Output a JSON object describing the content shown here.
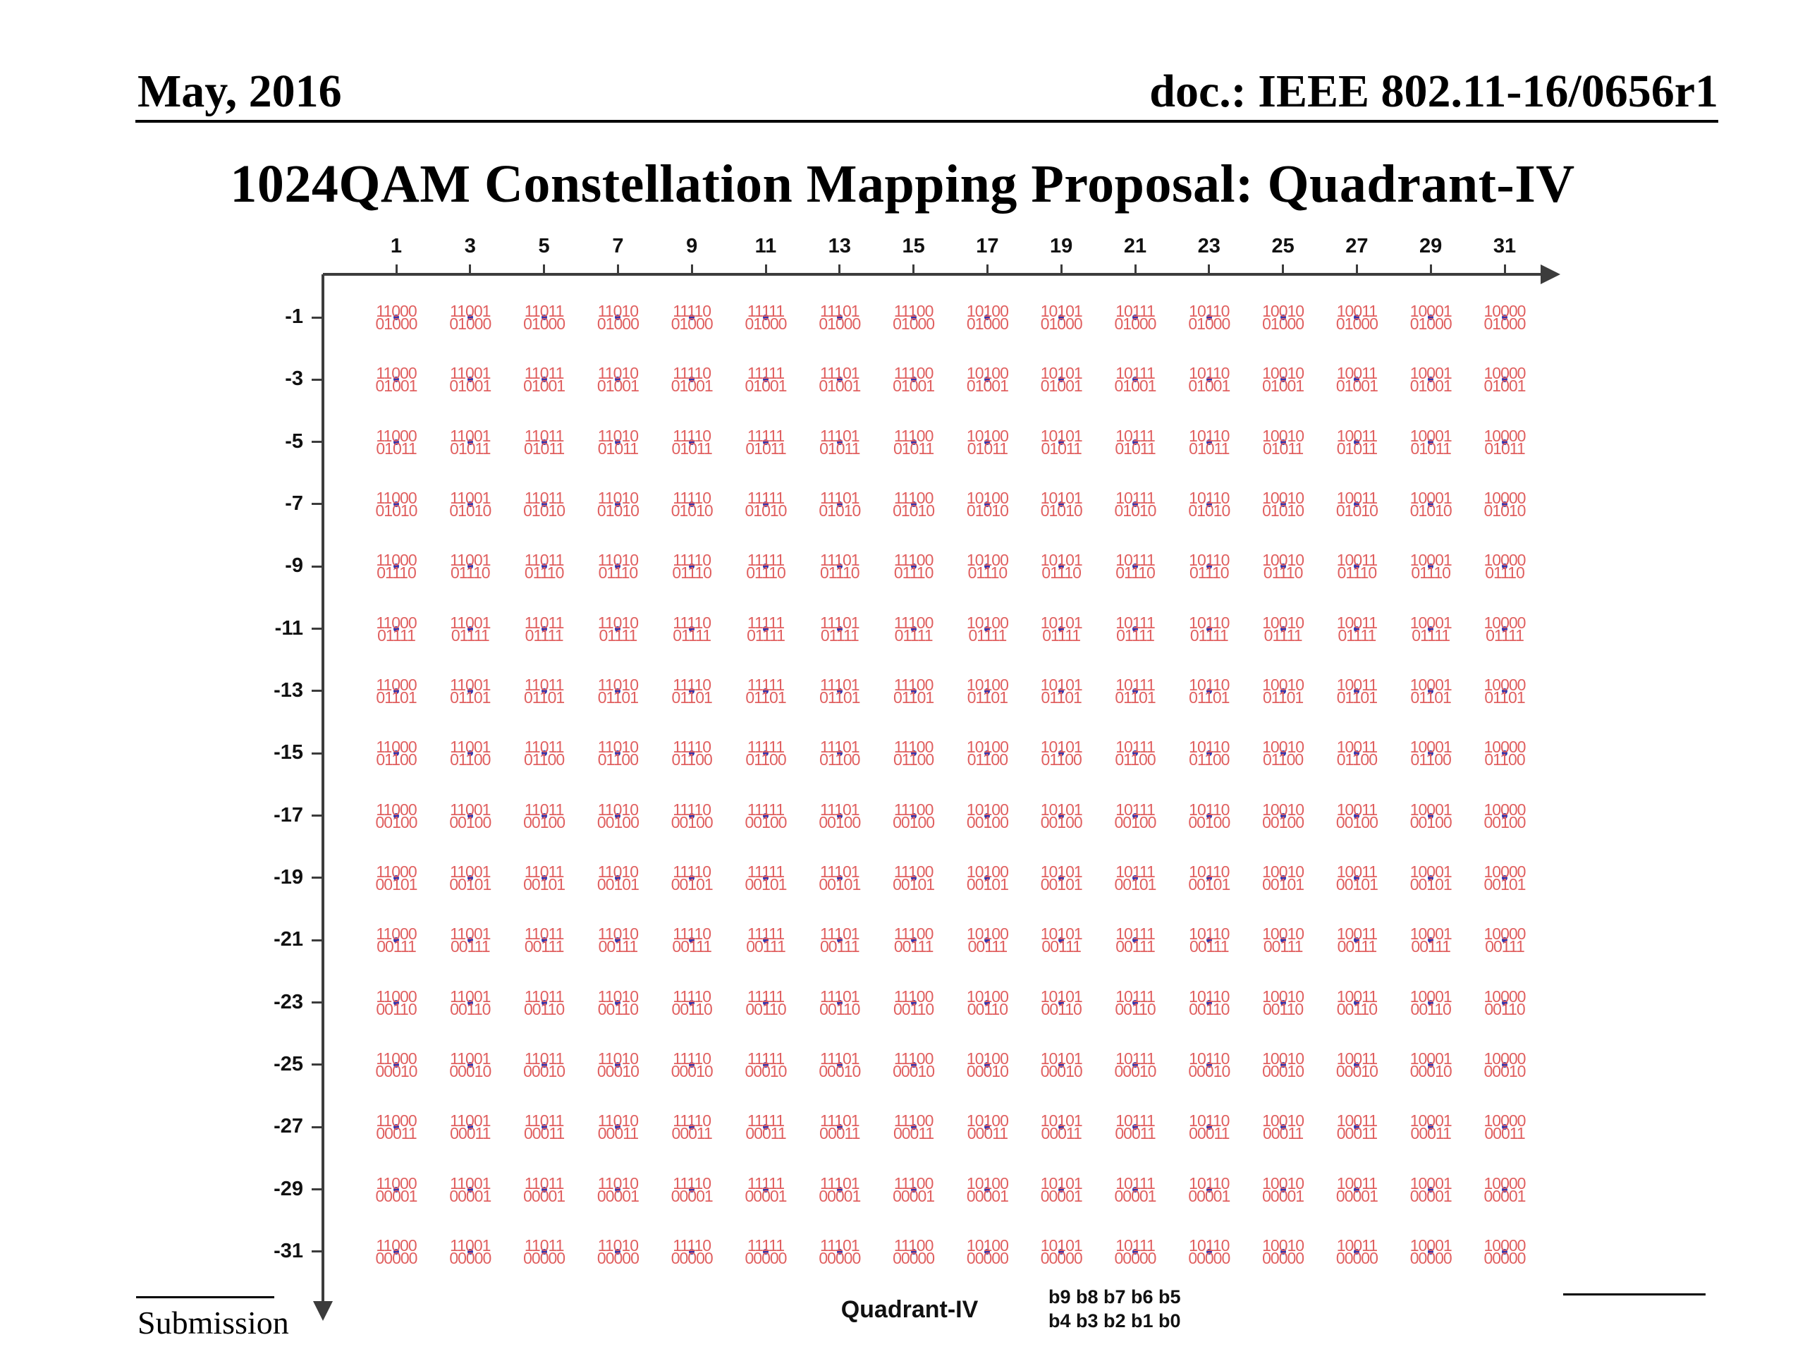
{
  "header": {
    "date": "May, 2016",
    "doc": "doc.: IEEE 802.11-16/0656r1"
  },
  "title": "1024QAM Constellation Mapping Proposal:  Quadrant-IV",
  "footer": {
    "submission": "Submission",
    "quadrant_label": "Quadrant-IV",
    "bit_legend_line1": "b9 b8 b7 b6 b5",
    "bit_legend_line2": "b4 b3 b2 b1 b0"
  },
  "chart_data": {
    "type": "scatter",
    "title": "1024QAM Constellation Mapping Proposal: Quadrant-IV",
    "quadrant": "Quadrant-IV",
    "xlabel": "",
    "ylabel": "",
    "x_ticks": [
      1,
      3,
      5,
      7,
      9,
      11,
      13,
      15,
      17,
      19,
      21,
      23,
      25,
      27,
      29,
      31
    ],
    "y_ticks": [
      -1,
      -3,
      -5,
      -7,
      -9,
      -11,
      -13,
      -15,
      -17,
      -19,
      -21,
      -23,
      -25,
      -27,
      -29,
      -31
    ],
    "n_points": 256,
    "label_rule": "Each constellation point is labeled with two stacked lines: top line = bits b9 b8 b7 b6 b5 (determined by the x / I column), bottom line = bits b4 b3 b2 b1 b0 (determined by the y / Q row)",
    "column_bits_b9_b5": [
      "11000",
      "11001",
      "11011",
      "11010",
      "11110",
      "11111",
      "11101",
      "11100",
      "10100",
      "10101",
      "10111",
      "10110",
      "10010",
      "10011",
      "10001",
      "10000"
    ],
    "row_bits_b4_b0": [
      "01000",
      "01001",
      "01011",
      "01010",
      "01110",
      "01111",
      "01101",
      "01100",
      "00100",
      "00101",
      "00111",
      "00110",
      "00010",
      "00011",
      "00001",
      "00000"
    ],
    "layout_hints": {
      "x_axis_direction": "right",
      "y_axis_direction": "down",
      "x_tick_side": "top",
      "y_tick_side": "left",
      "grid": "off",
      "legend_position": "bottom"
    },
    "colors": {
      "point_label": "#e05f5f",
      "point_dot": "#3535ad",
      "axis": "#3c3c3c"
    }
  }
}
